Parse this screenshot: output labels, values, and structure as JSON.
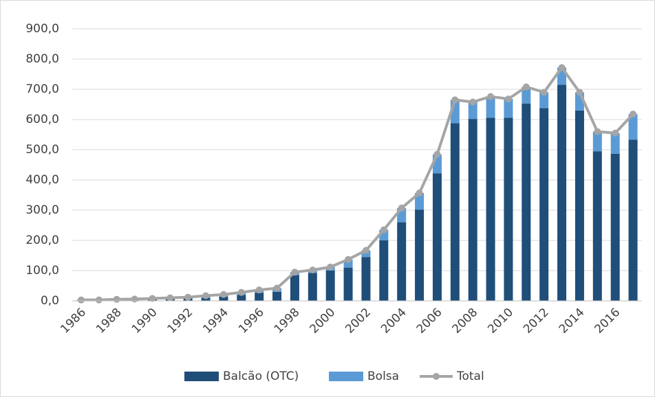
{
  "chart_data": {
    "type": "stacked-bar-line",
    "categories": [
      "1986",
      null,
      "1988",
      null,
      "1990",
      null,
      "1992",
      null,
      "1994",
      null,
      "1996",
      null,
      "1998",
      null,
      "2000",
      null,
      "2002",
      null,
      "2004",
      null,
      "2006",
      null,
      "2008",
      null,
      "2010",
      null,
      "2012",
      null,
      "2014",
      null,
      "2016",
      null
    ],
    "series": [
      {
        "name": "Balcão (OTC)",
        "kind": "bar",
        "color": "#1f4e79",
        "values": [
          2,
          2,
          3,
          4,
          6,
          8,
          9,
          10,
          14,
          20,
          27,
          30,
          85,
          92,
          100,
          110,
          145,
          200,
          260,
          302,
          422,
          588,
          602,
          606,
          606,
          653,
          638,
          715,
          630,
          495,
          487,
          533
        ]
      },
      {
        "name": "Bolsa",
        "kind": "bar",
        "color": "#5b9bd5",
        "values": [
          1,
          1,
          2,
          2,
          2,
          2,
          3,
          7,
          7,
          8,
          9,
          12,
          10,
          10,
          12,
          27,
          22,
          35,
          47,
          55,
          63,
          77,
          56,
          70,
          62,
          55,
          52,
          57,
          60,
          65,
          68,
          85
        ]
      },
      {
        "name": "Total",
        "kind": "line",
        "color": "#a5a5a5",
        "values": [
          3,
          3,
          5,
          6,
          8,
          10,
          12,
          17,
          21,
          28,
          36,
          42,
          95,
          102,
          112,
          137,
          167,
          235,
          307,
          357,
          485,
          665,
          658,
          676,
          668,
          708,
          690,
          772,
          690,
          560,
          555,
          618
        ]
      }
    ],
    "ylim": [
      0,
      900
    ],
    "yticks": [
      {
        "value": 0,
        "label": "0,0"
      },
      {
        "value": 100,
        "label": "100,0"
      },
      {
        "value": 200,
        "label": "200,0"
      },
      {
        "value": 300,
        "label": "300,0"
      },
      {
        "value": 400,
        "label": "400,0"
      },
      {
        "value": 500,
        "label": "500,0"
      },
      {
        "value": 600,
        "label": "600,0"
      },
      {
        "value": 700,
        "label": "700,0"
      },
      {
        "value": 800,
        "label": "800,0"
      },
      {
        "value": 900,
        "label": "900,0"
      }
    ],
    "grid": true,
    "legend": "bottom"
  }
}
